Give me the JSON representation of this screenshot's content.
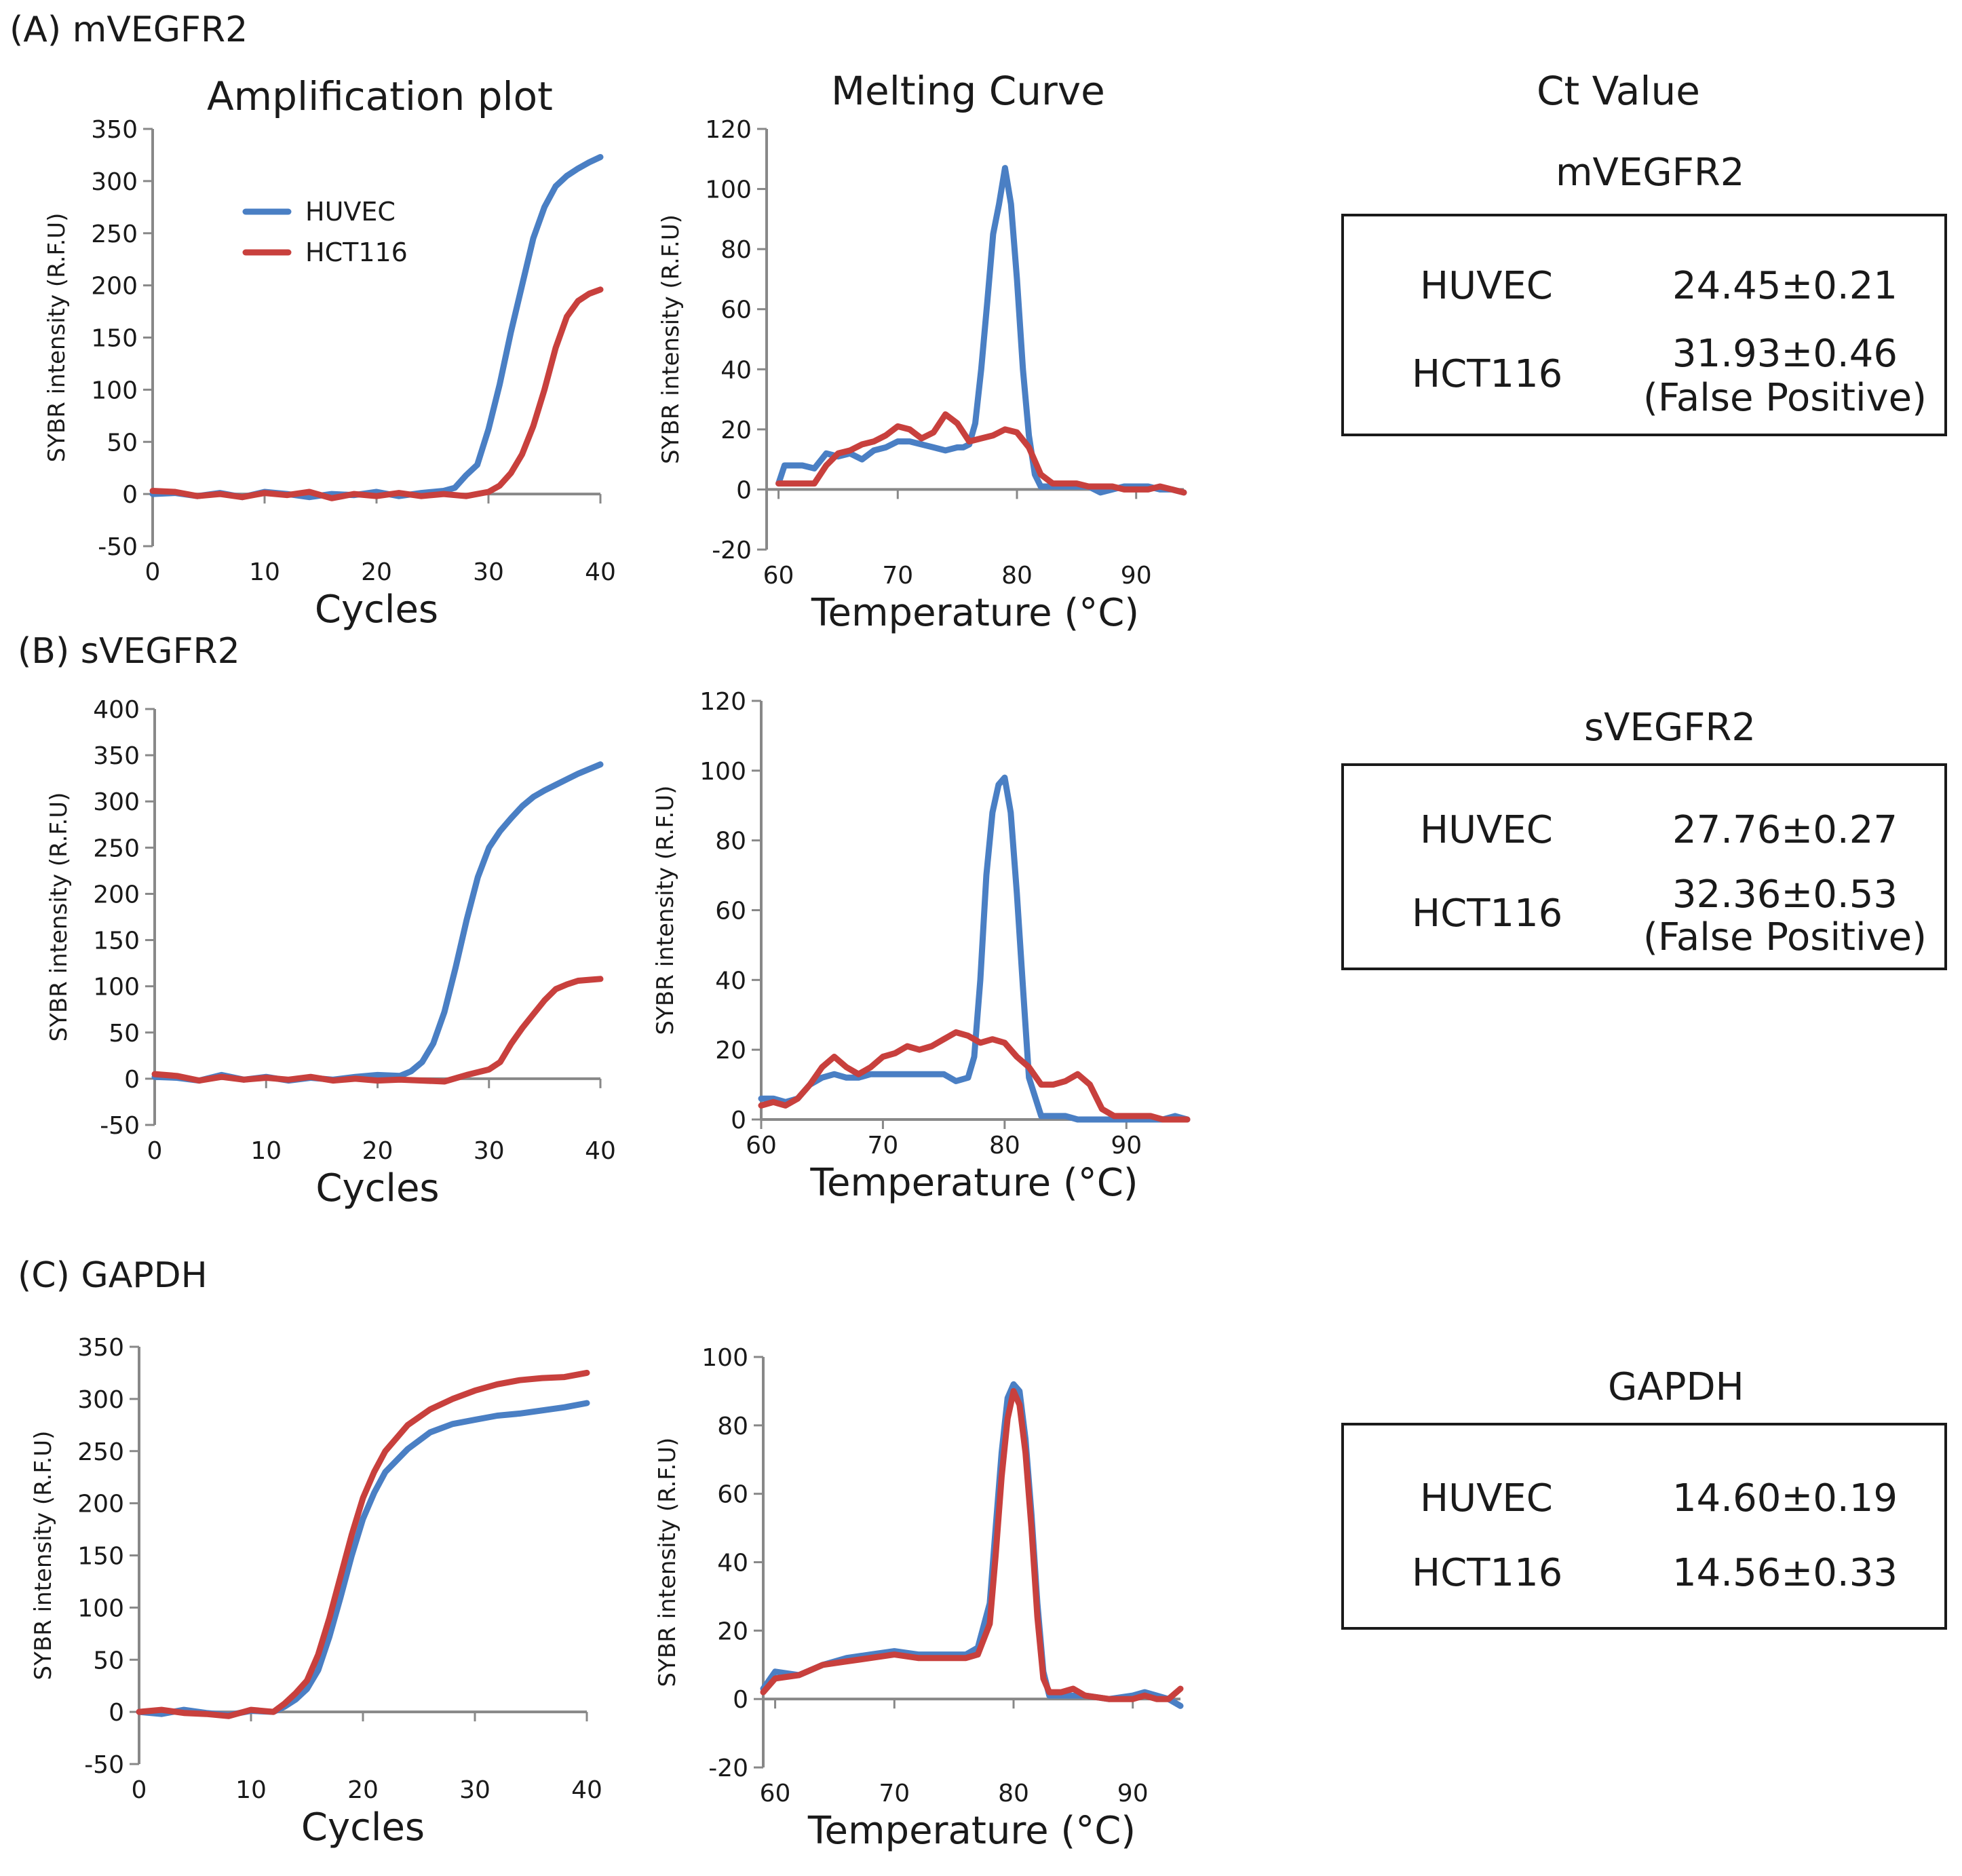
{
  "sections": {
    "a_label": "(A) mVEGFR2",
    "b_label": "(B) sVEGFR2",
    "c_label": "(C) GAPDH"
  },
  "column_headers": {
    "amplification": "Amplification plot",
    "melting": "Melting Curve",
    "ct": "Ct Value"
  },
  "ct_tables": [
    {
      "title": "mVEGFR2",
      "rows": [
        {
          "sample": "HUVEC",
          "value": "24.45±0.21",
          "note": ""
        },
        {
          "sample": "HCT116",
          "value": "31.93±0.46",
          "note": "(False Positive)"
        }
      ]
    },
    {
      "title": "sVEGFR2",
      "rows": [
        {
          "sample": "HUVEC",
          "value": "27.76±0.27",
          "note": ""
        },
        {
          "sample": "HCT116",
          "value": "32.36±0.53",
          "note": "(False Positive)"
        }
      ]
    },
    {
      "title": "GAPDH",
      "rows": [
        {
          "sample": "HUVEC",
          "value": "14.60±0.19",
          "note": ""
        },
        {
          "sample": "HCT116",
          "value": "14.56±0.33",
          "note": ""
        }
      ]
    }
  ],
  "colors": {
    "huvec": "#4a7fc4",
    "hct116": "#c8403d",
    "axis": "#888888"
  },
  "chart_data": [
    {
      "id": "amp_a",
      "type": "line",
      "title": "Amplification plot",
      "xlabel": "Cycles",
      "ylabel": "SYBR intensity (R.F.U)",
      "xlim": [
        0,
        40
      ],
      "ylim": [
        -50,
        350
      ],
      "xticks": [
        0,
        10,
        20,
        30,
        40
      ],
      "yticks": [
        -50,
        0,
        50,
        100,
        150,
        200,
        250,
        300,
        350
      ],
      "legend": {
        "position": "top-left",
        "entries": [
          "HUVEC",
          "HCT116"
        ]
      },
      "series": [
        {
          "name": "HUVEC",
          "color": "#4a7fc4",
          "x": [
            0,
            2,
            4,
            6,
            8,
            10,
            12,
            14,
            16,
            18,
            20,
            22,
            24,
            26,
            27,
            28,
            29,
            30,
            31,
            32,
            33,
            34,
            35,
            36,
            37,
            38,
            39,
            40
          ],
          "y": [
            0,
            1,
            -2,
            1,
            -3,
            2,
            0,
            -3,
            0,
            -1,
            2,
            -2,
            1,
            3,
            6,
            18,
            28,
            62,
            105,
            155,
            200,
            245,
            275,
            295,
            305,
            312,
            318,
            323
          ]
        },
        {
          "name": "HCT116",
          "color": "#c8403d",
          "x": [
            0,
            2,
            4,
            6,
            8,
            10,
            12,
            14,
            16,
            18,
            20,
            22,
            24,
            26,
            28,
            29,
            30,
            31,
            32,
            33,
            34,
            35,
            36,
            37,
            38,
            39,
            40
          ],
          "y": [
            3,
            2,
            -2,
            0,
            -3,
            1,
            -1,
            2,
            -4,
            0,
            -2,
            1,
            -2,
            0,
            -2,
            0,
            2,
            8,
            20,
            38,
            65,
            100,
            140,
            170,
            185,
            192,
            196
          ]
        }
      ]
    },
    {
      "id": "melt_a",
      "type": "line",
      "title": "Melting Curve",
      "xlabel": "Temperature (°C)",
      "ylabel": "SYBR intensity (R.F.U)",
      "xlim": [
        59,
        94
      ],
      "ylim": [
        -20,
        120
      ],
      "xticks": [
        60,
        70,
        80,
        90
      ],
      "yticks": [
        -20,
        0,
        20,
        40,
        60,
        80,
        100,
        120
      ],
      "series": [
        {
          "name": "HUVEC",
          "color": "#4a7fc4",
          "x": [
            60,
            60.5,
            62,
            63,
            64,
            65,
            66,
            67,
            68,
            69,
            70,
            71,
            72,
            73,
            74,
            75,
            75.5,
            76,
            76.5,
            77,
            77.5,
            78,
            78.5,
            79,
            79.5,
            80,
            80.5,
            81,
            81.5,
            82,
            83,
            84,
            85,
            86,
            87,
            88,
            89,
            90,
            91,
            92,
            93,
            94
          ],
          "y": [
            2,
            8,
            8,
            7,
            12,
            11,
            12,
            10,
            13,
            14,
            16,
            16,
            15,
            14,
            13,
            14,
            14,
            15,
            22,
            40,
            62,
            85,
            95,
            107,
            95,
            70,
            40,
            18,
            5,
            1,
            1,
            1,
            1,
            1,
            -1,
            0,
            1,
            1,
            1,
            0,
            0,
            -1
          ]
        },
        {
          "name": "HCT116",
          "color": "#c8403d",
          "x": [
            60,
            61,
            62,
            63,
            64,
            65,
            66,
            67,
            68,
            69,
            70,
            71,
            72,
            73,
            74,
            75,
            76,
            77,
            78,
            79,
            80,
            81,
            82,
            83,
            84,
            85,
            86,
            87,
            88,
            89,
            90,
            91,
            92,
            93,
            94
          ],
          "y": [
            2,
            2,
            2,
            2,
            8,
            12,
            13,
            15,
            16,
            18,
            21,
            20,
            17,
            19,
            25,
            22,
            16,
            17,
            18,
            20,
            19,
            14,
            5,
            2,
            2,
            2,
            1,
            1,
            1,
            0,
            0,
            0,
            1,
            0,
            -1
          ]
        }
      ]
    },
    {
      "id": "amp_b",
      "type": "line",
      "title": "",
      "xlabel": "Cycles",
      "ylabel": "SYBR intensity (R.F.U)",
      "xlim": [
        0,
        40
      ],
      "ylim": [
        -50,
        400
      ],
      "xticks": [
        0,
        10,
        20,
        30,
        40
      ],
      "yticks": [
        -50,
        0,
        50,
        100,
        150,
        200,
        250,
        300,
        350,
        400
      ],
      "series": [
        {
          "name": "HUVEC",
          "color": "#4a7fc4",
          "x": [
            0,
            2,
            4,
            6,
            8,
            10,
            12,
            14,
            16,
            18,
            20,
            22,
            23,
            24,
            25,
            26,
            27,
            28,
            29,
            30,
            31,
            32,
            33,
            34,
            35,
            36,
            37,
            38,
            39,
            40
          ],
          "y": [
            2,
            1,
            -2,
            4,
            -1,
            2,
            -2,
            1,
            -1,
            2,
            4,
            3,
            8,
            18,
            38,
            72,
            120,
            172,
            218,
            250,
            268,
            282,
            295,
            305,
            312,
            318,
            324,
            330,
            335,
            340
          ]
        },
        {
          "name": "HCT116",
          "color": "#c8403d",
          "x": [
            0,
            2,
            4,
            6,
            8,
            10,
            12,
            14,
            16,
            18,
            20,
            22,
            24,
            26,
            28,
            30,
            31,
            32,
            33,
            34,
            35,
            36,
            37,
            38,
            39,
            40
          ],
          "y": [
            5,
            3,
            -2,
            2,
            -1,
            1,
            -1,
            2,
            -2,
            0,
            -2,
            -1,
            -2,
            -3,
            4,
            10,
            18,
            38,
            55,
            70,
            85,
            97,
            102,
            106,
            107,
            108
          ]
        }
      ]
    },
    {
      "id": "melt_b",
      "type": "line",
      "title": "",
      "xlabel": "Temperature (°C)",
      "ylabel": "SYBR intensity (R.F.U)",
      "xlim": [
        60,
        95
      ],
      "ylim": [
        0,
        120
      ],
      "xticks": [
        60,
        70,
        80,
        90
      ],
      "yticks": [
        0,
        20,
        40,
        60,
        80,
        100,
        120
      ],
      "series": [
        {
          "name": "HUVEC",
          "color": "#4a7fc4",
          "x": [
            60,
            61,
            62,
            63,
            64,
            65,
            66,
            67,
            68,
            69,
            70,
            71,
            72,
            73,
            74,
            75,
            76,
            77,
            77.5,
            78,
            78.5,
            79,
            79.5,
            80,
            80.5,
            81,
            81.5,
            82,
            83,
            84,
            85,
            86,
            87,
            88,
            89,
            90,
            91,
            92,
            93,
            94,
            95
          ],
          "y": [
            6,
            6,
            5,
            6,
            10,
            12,
            13,
            12,
            12,
            13,
            13,
            13,
            13,
            13,
            13,
            13,
            11,
            12,
            18,
            40,
            70,
            88,
            96,
            98,
            88,
            65,
            38,
            12,
            1,
            1,
            1,
            0,
            0,
            0,
            0,
            0,
            0,
            0,
            0,
            1,
            0
          ]
        },
        {
          "name": "HCT116",
          "color": "#c8403d",
          "x": [
            60,
            61,
            62,
            63,
            64,
            65,
            66,
            67,
            68,
            69,
            70,
            71,
            72,
            73,
            74,
            75,
            76,
            77,
            78,
            79,
            80,
            81,
            82,
            83,
            84,
            85,
            86,
            87,
            88,
            89,
            90,
            91,
            92,
            93,
            94,
            95
          ],
          "y": [
            4,
            5,
            4,
            6,
            10,
            15,
            18,
            15,
            13,
            15,
            18,
            19,
            21,
            20,
            21,
            23,
            25,
            24,
            22,
            23,
            22,
            18,
            15,
            10,
            10,
            11,
            13,
            10,
            3,
            1,
            1,
            1,
            1,
            0,
            0,
            0
          ]
        }
      ]
    },
    {
      "id": "amp_c",
      "type": "line",
      "title": "",
      "xlabel": "Cycles",
      "ylabel": "SYBR intensity (R.F.U)",
      "xlim": [
        0,
        40
      ],
      "ylim": [
        -50,
        350
      ],
      "xticks": [
        0,
        10,
        20,
        30,
        40
      ],
      "yticks": [
        -50,
        0,
        50,
        100,
        150,
        200,
        250,
        300,
        350
      ],
      "series": [
        {
          "name": "HUVEC",
          "color": "#4a7fc4",
          "x": [
            0,
            2,
            4,
            6,
            8,
            10,
            12,
            13,
            14,
            15,
            16,
            17,
            18,
            19,
            20,
            21,
            22,
            24,
            26,
            28,
            30,
            32,
            34,
            36,
            38,
            40
          ],
          "y": [
            0,
            -2,
            2,
            -1,
            -3,
            1,
            0,
            5,
            12,
            22,
            40,
            72,
            110,
            150,
            185,
            210,
            230,
            252,
            268,
            276,
            280,
            284,
            286,
            289,
            292,
            296
          ]
        },
        {
          "name": "HCT116",
          "color": "#c8403d",
          "x": [
            0,
            2,
            4,
            6,
            8,
            10,
            12,
            13,
            14,
            15,
            16,
            17,
            18,
            19,
            20,
            21,
            22,
            24,
            26,
            28,
            30,
            32,
            34,
            36,
            38,
            40
          ],
          "y": [
            0,
            2,
            -1,
            -2,
            -4,
            2,
            0,
            8,
            18,
            30,
            55,
            90,
            130,
            170,
            205,
            230,
            250,
            275,
            290,
            300,
            308,
            314,
            318,
            320,
            321,
            325
          ]
        }
      ]
    },
    {
      "id": "melt_c",
      "type": "line",
      "title": "",
      "xlabel": "Temperature (°C)",
      "ylabel": "SYBR intensity (R.F.U)",
      "xlim": [
        59,
        94
      ],
      "ylim": [
        -20,
        100
      ],
      "xticks": [
        60,
        70,
        80,
        90
      ],
      "yticks": [
        -20,
        0,
        20,
        40,
        60,
        80,
        100
      ],
      "series": [
        {
          "name": "HUVEC",
          "color": "#4a7fc4",
          "x": [
            59,
            60,
            62,
            64,
            66,
            68,
            70,
            72,
            74,
            76,
            77,
            78,
            78.5,
            79,
            79.5,
            80,
            80.5,
            81,
            81.5,
            82,
            82.5,
            83,
            84,
            86,
            88,
            90,
            91,
            92,
            93,
            94
          ],
          "y": [
            3,
            8,
            7,
            10,
            12,
            13,
            14,
            13,
            13,
            13,
            15,
            28,
            50,
            72,
            88,
            92,
            90,
            76,
            54,
            28,
            8,
            1,
            1,
            1,
            0,
            1,
            2,
            1,
            0,
            -2
          ]
        },
        {
          "name": "HCT116",
          "color": "#c8403d",
          "x": [
            59,
            60,
            62,
            64,
            66,
            68,
            70,
            72,
            74,
            76,
            77,
            78,
            78.5,
            79,
            79.5,
            80,
            80.5,
            81,
            81.5,
            82,
            82.5,
            83,
            84,
            85,
            86,
            88,
            90,
            91,
            92,
            93,
            94
          ],
          "y": [
            2,
            6,
            7,
            10,
            11,
            12,
            13,
            12,
            12,
            12,
            13,
            22,
            42,
            65,
            82,
            90,
            86,
            72,
            50,
            24,
            6,
            2,
            2,
            3,
            1,
            0,
            0,
            1,
            0,
            0,
            3
          ]
        }
      ]
    }
  ]
}
